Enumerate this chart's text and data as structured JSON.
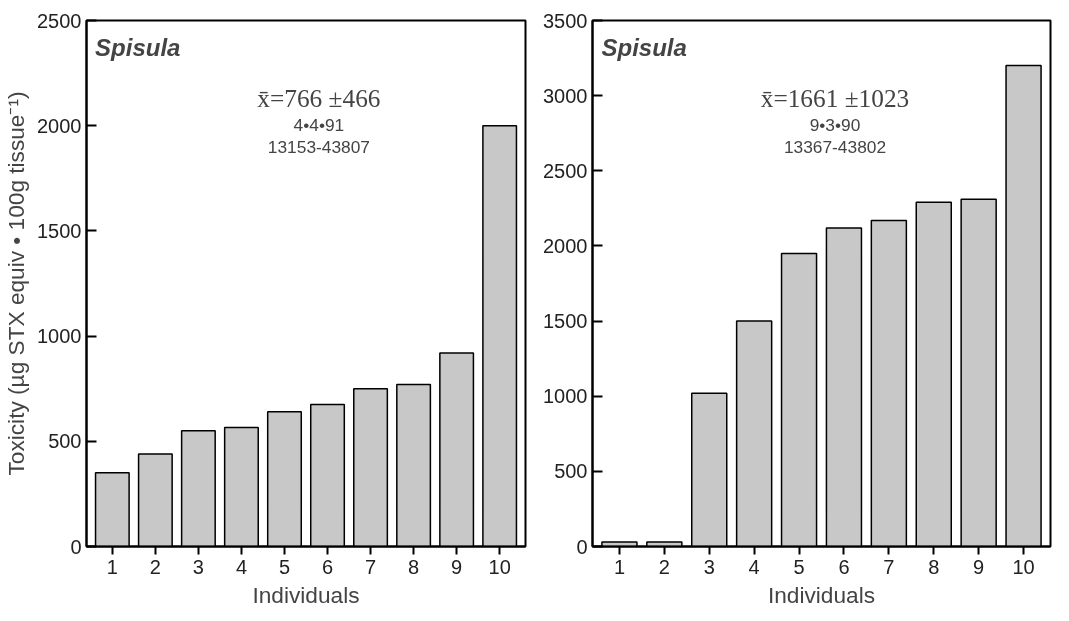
{
  "chart_data": [
    {
      "type": "bar",
      "xlabel": "Individuals",
      "ylabel": "Toxicity (µg STX equiv • 100g tissue⁻¹)",
      "categories": [
        "1",
        "2",
        "3",
        "4",
        "5",
        "6",
        "7",
        "8",
        "9",
        "10"
      ],
      "values": [
        350,
        440,
        550,
        565,
        640,
        675,
        750,
        770,
        920,
        2000
      ],
      "color": "#c8c8c8",
      "ylim": [
        0,
        2500
      ],
      "yticks": [
        0,
        500,
        1000,
        1500,
        2000,
        2500
      ],
      "grid": false,
      "annotations": [
        "Spisula",
        "x̄=766 ±466",
        "4•4•91",
        "13153-43807"
      ]
    },
    {
      "type": "bar",
      "xlabel": "Individuals",
      "categories": [
        "1",
        "2",
        "3",
        "4",
        "5",
        "6",
        "7",
        "8",
        "9",
        "10"
      ],
      "values": [
        30,
        30,
        1020,
        1500,
        1950,
        2120,
        2170,
        2290,
        2310,
        3200
      ],
      "color": "#c8c8c8",
      "ylim": [
        0,
        3500
      ],
      "yticks": [
        0,
        500,
        1000,
        1500,
        2000,
        2500,
        3000,
        3500
      ],
      "grid": false,
      "annotations": [
        "Spisula",
        "x̄=1661 ±1023",
        "9•3•90",
        "13367-43802"
      ]
    }
  ]
}
